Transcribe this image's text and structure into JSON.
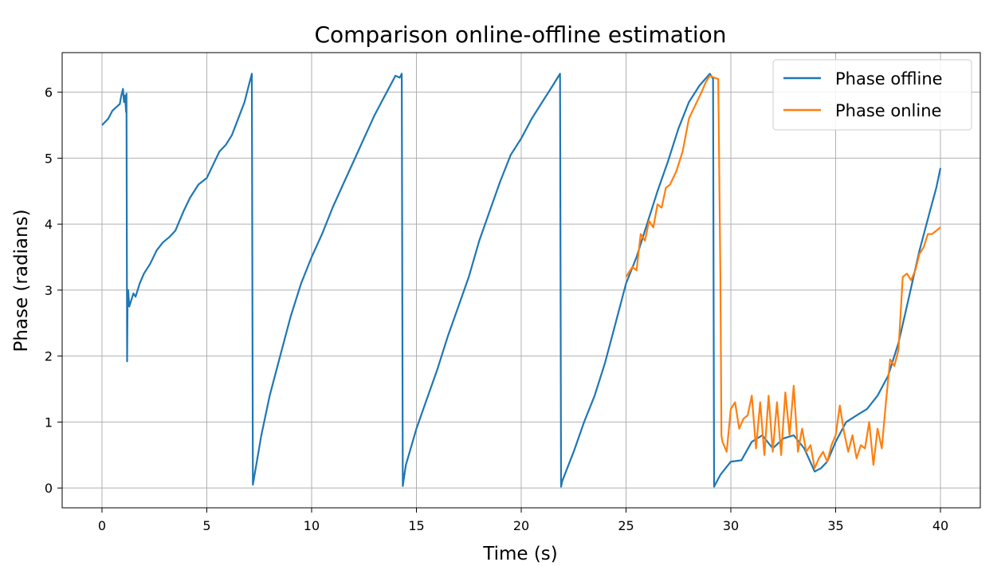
{
  "chart_data": {
    "type": "line",
    "title": "Comparison online-offline estimation",
    "xlabel": "Time (s)",
    "ylabel": "Phase (radians)",
    "xlim": [
      -1.9,
      41.9
    ],
    "ylim": [
      -0.3,
      6.6
    ],
    "xticks": [
      0,
      5,
      10,
      15,
      20,
      25,
      30,
      35,
      40
    ],
    "yticks": [
      0,
      1,
      2,
      3,
      4,
      5,
      6
    ],
    "grid": true,
    "legend_position": "top-right",
    "series": [
      {
        "name": "Phase offline",
        "color": "#1f77b4",
        "x": [
          0,
          0.3,
          0.5,
          0.7,
          0.85,
          0.92,
          1.0,
          1.05,
          1.1,
          1.15,
          1.17,
          1.2,
          1.22,
          1.25,
          1.3,
          1.35,
          1.4,
          1.5,
          1.6,
          1.8,
          2.0,
          2.3,
          2.6,
          2.9,
          3.2,
          3.5,
          3.9,
          4.2,
          4.6,
          5.0,
          5.3,
          5.6,
          5.9,
          6.2,
          6.5,
          6.8,
          7.0,
          7.15,
          7.2,
          7.6,
          8.0,
          8.5,
          9.0,
          9.5,
          10.0,
          10.5,
          11.0,
          11.5,
          12.0,
          12.5,
          13.0,
          13.5,
          14.0,
          14.2,
          14.3,
          14.35,
          14.38,
          14.5,
          15.0,
          15.5,
          16.0,
          16.5,
          17.0,
          17.5,
          18.0,
          18.5,
          19.0,
          19.5,
          20.0,
          20.5,
          21.0,
          21.5,
          21.85,
          21.9,
          21.95,
          22.5,
          23.0,
          23.5,
          24.0,
          24.5,
          25.0,
          25.5,
          26.0,
          26.5,
          27.0,
          27.5,
          28.0,
          28.5,
          29.0,
          29.15,
          29.2,
          29.5,
          30.0,
          30.5,
          31.0,
          31.5,
          32.0,
          32.5,
          33.0,
          33.5,
          34.0,
          34.3,
          34.6,
          35.0,
          35.5,
          36.0,
          36.5,
          37.0,
          37.5,
          38.0,
          38.5,
          39.0,
          39.5,
          39.8,
          40.0
        ],
        "y": [
          5.5,
          5.6,
          5.72,
          5.78,
          5.82,
          5.95,
          6.05,
          5.85,
          5.95,
          5.7,
          5.98,
          1.92,
          2.9,
          3.0,
          2.75,
          2.8,
          2.85,
          2.95,
          2.9,
          3.1,
          3.25,
          3.4,
          3.6,
          3.72,
          3.8,
          3.9,
          4.2,
          4.4,
          4.6,
          4.7,
          4.9,
          5.1,
          5.2,
          5.35,
          5.6,
          5.85,
          6.1,
          6.28,
          0.05,
          0.8,
          1.4,
          2.0,
          2.6,
          3.1,
          3.5,
          3.85,
          4.25,
          4.6,
          4.95,
          5.3,
          5.65,
          5.95,
          6.25,
          6.22,
          6.28,
          0.03,
          0.1,
          0.35,
          0.9,
          1.35,
          1.8,
          2.3,
          2.75,
          3.2,
          3.75,
          4.2,
          4.65,
          5.05,
          5.3,
          5.6,
          5.85,
          6.1,
          6.28,
          0.02,
          0.1,
          0.55,
          1.0,
          1.4,
          1.9,
          2.5,
          3.1,
          3.5,
          4.0,
          4.5,
          4.95,
          5.45,
          5.85,
          6.1,
          6.28,
          6.2,
          0.02,
          0.2,
          0.4,
          0.42,
          0.7,
          0.8,
          0.6,
          0.75,
          0.8,
          0.6,
          0.25,
          0.3,
          0.4,
          0.7,
          1.0,
          1.1,
          1.2,
          1.4,
          1.7,
          2.2,
          2.9,
          3.6,
          4.2,
          4.55,
          4.85
        ]
      },
      {
        "name": "Phase online",
        "color": "#ff7f0e",
        "x": [
          25.0,
          25.3,
          25.5,
          25.7,
          25.9,
          26.1,
          26.3,
          26.5,
          26.7,
          26.9,
          27.1,
          27.4,
          27.7,
          28.0,
          28.3,
          28.6,
          28.8,
          29.0,
          29.2,
          29.4,
          29.5,
          29.55,
          29.6,
          29.8,
          30.0,
          30.2,
          30.4,
          30.6,
          30.8,
          31.0,
          31.2,
          31.4,
          31.6,
          31.8,
          32.0,
          32.2,
          32.4,
          32.6,
          32.8,
          33.0,
          33.2,
          33.4,
          33.6,
          33.8,
          34.0,
          34.2,
          34.4,
          34.6,
          34.8,
          35.0,
          35.2,
          35.4,
          35.6,
          35.8,
          36.0,
          36.2,
          36.4,
          36.6,
          36.8,
          37.0,
          37.2,
          37.4,
          37.6,
          37.8,
          38.0,
          38.2,
          38.4,
          38.6,
          38.8,
          39.0,
          39.2,
          39.4,
          39.6,
          39.8,
          40.0
        ],
        "y": [
          3.2,
          3.35,
          3.3,
          3.85,
          3.75,
          4.05,
          3.95,
          4.3,
          4.25,
          4.55,
          4.6,
          4.8,
          5.1,
          5.6,
          5.8,
          6.0,
          6.15,
          6.25,
          6.22,
          6.2,
          3.2,
          0.8,
          0.7,
          0.55,
          1.2,
          1.3,
          0.9,
          1.05,
          1.1,
          1.4,
          0.6,
          1.3,
          0.5,
          1.4,
          0.55,
          1.3,
          0.5,
          1.45,
          0.8,
          1.55,
          0.55,
          0.9,
          0.55,
          0.65,
          0.3,
          0.45,
          0.55,
          0.4,
          0.65,
          0.8,
          1.25,
          0.85,
          0.55,
          0.8,
          0.45,
          0.65,
          0.6,
          1.0,
          0.35,
          0.9,
          0.6,
          1.3,
          1.95,
          1.85,
          2.1,
          3.2,
          3.25,
          3.15,
          3.3,
          3.55,
          3.65,
          3.85,
          3.85,
          3.9,
          3.95
        ]
      }
    ]
  }
}
